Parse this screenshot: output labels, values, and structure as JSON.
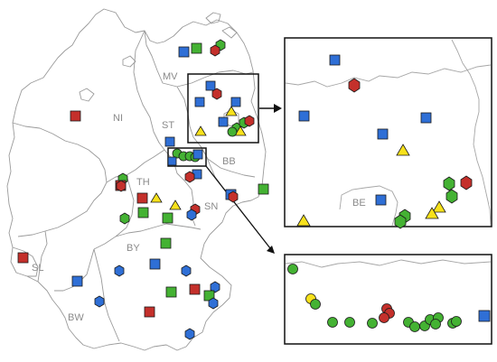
{
  "map": {
    "state_labels": {
      "mv": "MV",
      "ni": "NI",
      "st": "ST",
      "bb": "BB",
      "th": "TH",
      "sn": "SN",
      "by": "BY",
      "sl": "SL",
      "bw": "BW"
    },
    "inset_label": "BE"
  },
  "legend_colors": {
    "blue_square": "#2f6fd6",
    "green_square": "#44b233",
    "red_square": "#c4302b",
    "green_circle": "#44b233",
    "red_circle": "#c4302b",
    "yellow_triangle": "#f7e11b",
    "green_hexagon": "#44b233",
    "blue_hexagon": "#2f6fd6",
    "red_hexagon": "#c4302b",
    "outline": "#1a1a1a"
  }
}
